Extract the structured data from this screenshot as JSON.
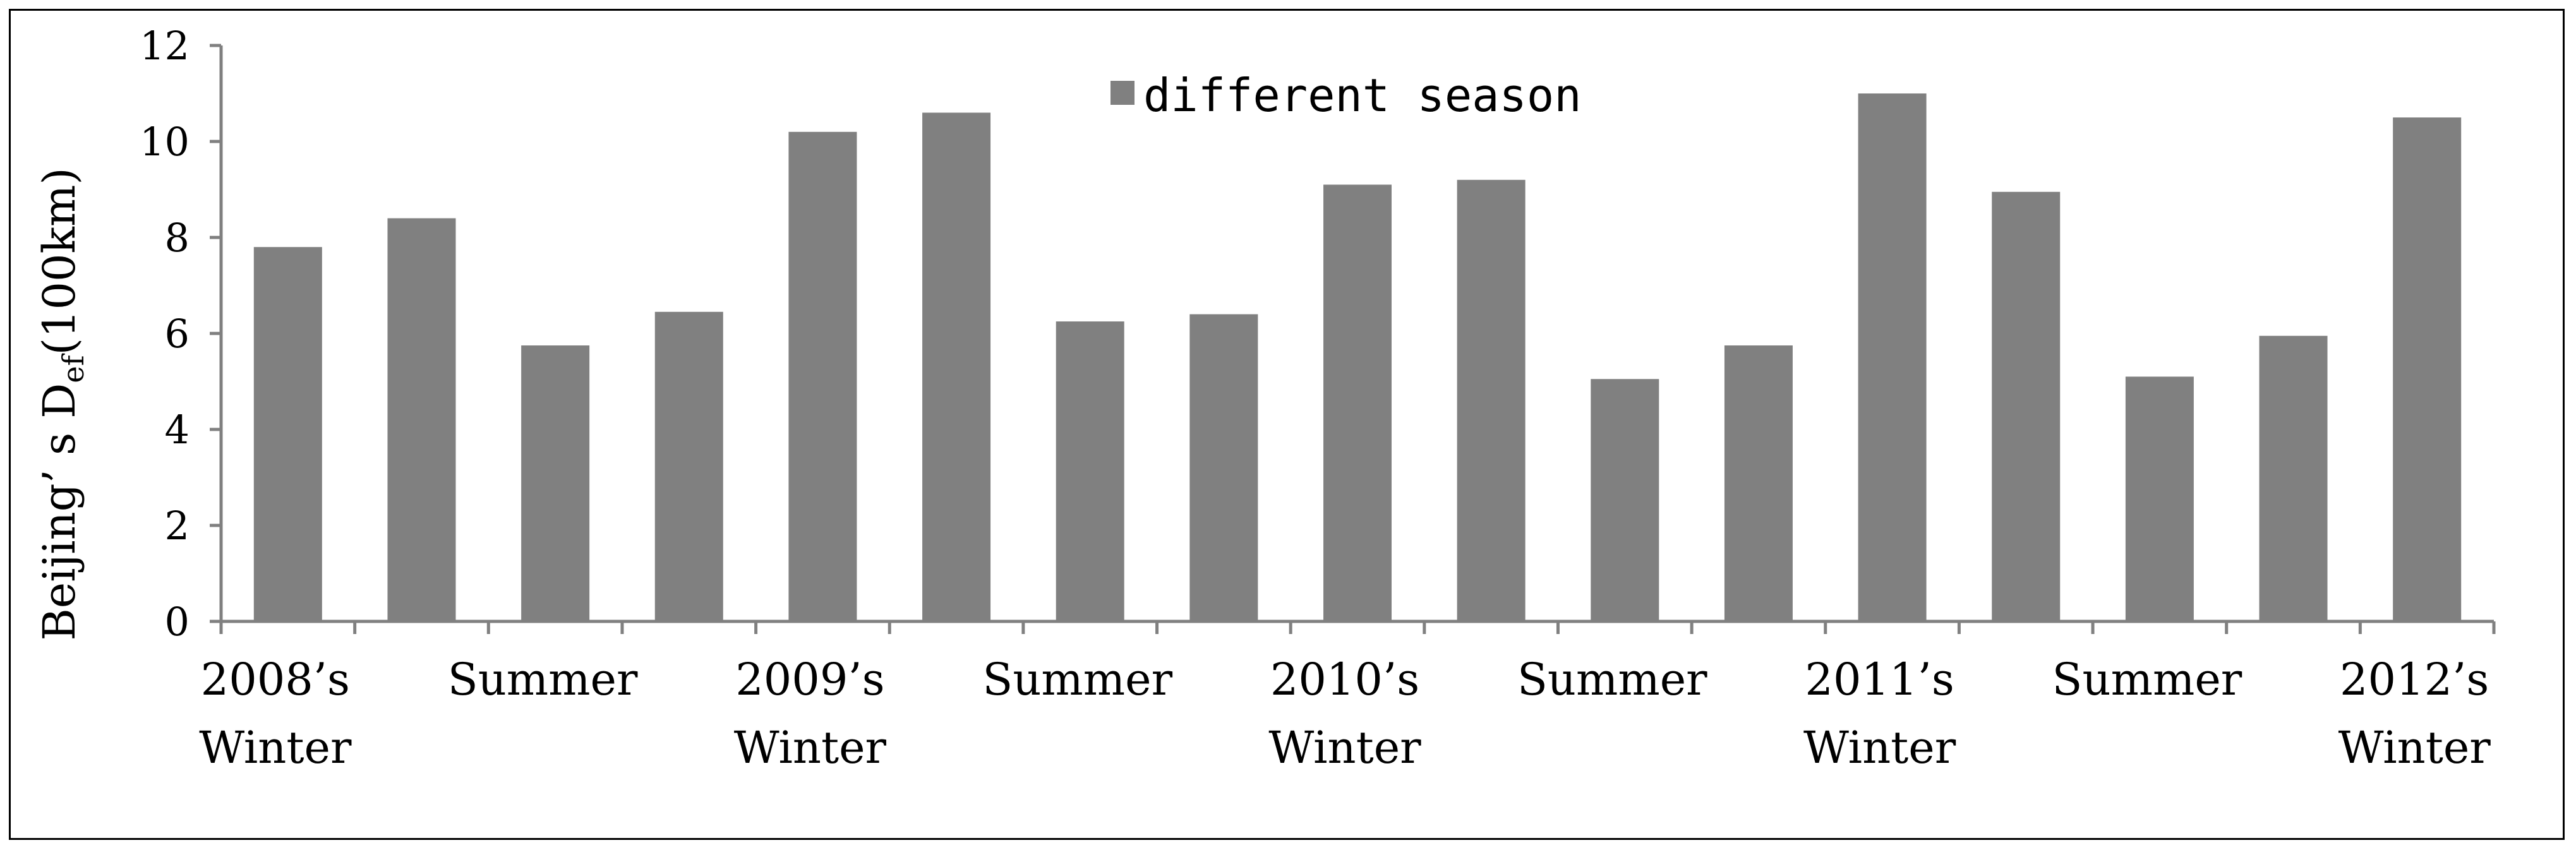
{
  "chart_data": {
    "type": "bar",
    "title": "",
    "ylabel": "Beijing’ s D",
    "ylabel_subscript": "ef",
    "ylabel_unit": "(100km)",
    "xlabel": "",
    "ylim": [
      0,
      12
    ],
    "yticks": [
      "0",
      "2",
      "4",
      "6",
      "8",
      "10",
      "12"
    ],
    "categories": [
      "2008’s Winter",
      "",
      "Summer",
      "",
      "2009’s Winter",
      "",
      "Summer",
      "",
      "2010’s Winter",
      "",
      "Summer",
      "",
      "2011’s Winter",
      "",
      "Summer",
      "",
      "2012’s Winter"
    ],
    "series": [
      {
        "name": "different season",
        "values": [
          7.8,
          8.4,
          5.75,
          6.45,
          10.2,
          10.6,
          6.25,
          6.4,
          9.1,
          9.2,
          5.05,
          5.75,
          11.0,
          8.95,
          5.1,
          5.95,
          10.5
        ]
      }
    ],
    "legend": {
      "position": "top-center",
      "label": "different season"
    },
    "grid": false,
    "bar_color": "#808080"
  },
  "category_labels": [
    {
      "line1": "2008’s",
      "line2": "Winter"
    },
    {
      "line1": "Summer",
      "line2": ""
    },
    {
      "line1": "2009’s",
      "line2": "Winter"
    },
    {
      "line1": "Summer",
      "line2": ""
    },
    {
      "line1": "2010’s",
      "line2": "Winter"
    },
    {
      "line1": "Summer",
      "line2": ""
    },
    {
      "line1": "2011’s",
      "line2": "Winter"
    },
    {
      "line1": "Summer",
      "line2": ""
    },
    {
      "line1": "2012’s",
      "line2": "Winter"
    }
  ]
}
